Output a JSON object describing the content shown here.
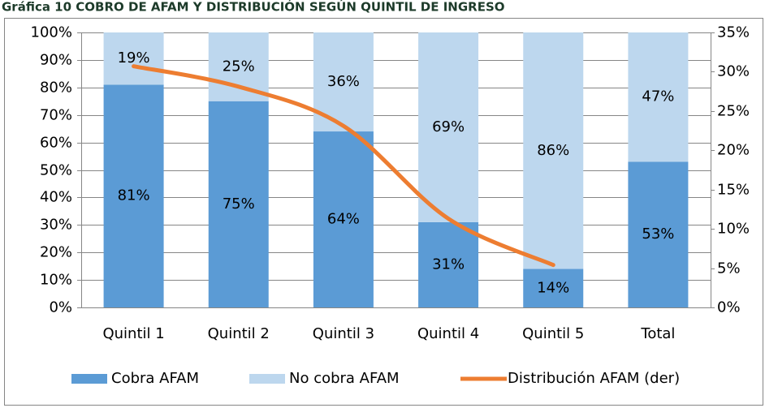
{
  "chart_data": {
    "type": "stacked-bar-line",
    "title": "Gráfica 10 COBRO DE AFAM Y DISTRIBUCIÓN SEGÚN QUINTIL DE INGRESO",
    "categories": [
      "Quintil 1",
      "Quintil 2",
      "Quintil 3",
      "Quintil 4",
      "Quintil 5",
      "Total"
    ],
    "series": [
      {
        "name": "Cobra AFAM",
        "color": "#5b9bd5",
        "values": [
          81,
          75,
          64,
          31,
          14,
          53
        ],
        "value_labels": [
          "81%",
          "75%",
          "64%",
          "31%",
          "14%",
          "53%"
        ]
      },
      {
        "name": "No cobra AFAM",
        "color": "#bdd7ee",
        "values": [
          19,
          25,
          36,
          69,
          86,
          47
        ],
        "value_labels": [
          "19%",
          "25%",
          "36%",
          "69%",
          "86%",
          "47%"
        ]
      },
      {
        "name": "Distribución AFAM (der)",
        "color": "#ed7d31",
        "axis": "y2",
        "values": [
          30.7,
          28.1,
          23.1,
          11.3,
          5.4,
          null
        ]
      }
    ],
    "ylim": [
      0,
      100
    ],
    "yticks": [
      {
        "value": 0,
        "label": "0%"
      },
      {
        "value": 10,
        "label": "10%"
      },
      {
        "value": 20,
        "label": "20%"
      },
      {
        "value": 30,
        "label": "30%"
      },
      {
        "value": 40,
        "label": "40%"
      },
      {
        "value": 50,
        "label": "50%"
      },
      {
        "value": 60,
        "label": "60%"
      },
      {
        "value": 70,
        "label": "70%"
      },
      {
        "value": 80,
        "label": "80%"
      },
      {
        "value": 90,
        "label": "90%"
      },
      {
        "value": 100,
        "label": "100%"
      }
    ],
    "y2lim": [
      0,
      35
    ],
    "y2ticks": [
      {
        "value": 0,
        "label": "0%"
      },
      {
        "value": 5,
        "label": "5%"
      },
      {
        "value": 10,
        "label": "10%"
      },
      {
        "value": 15,
        "label": "15%"
      },
      {
        "value": 20,
        "label": "20%"
      },
      {
        "value": 25,
        "label": "25%"
      },
      {
        "value": 30,
        "label": "30%"
      },
      {
        "value": 35,
        "label": "35%"
      }
    ],
    "grid": true,
    "legend": "bottom"
  }
}
